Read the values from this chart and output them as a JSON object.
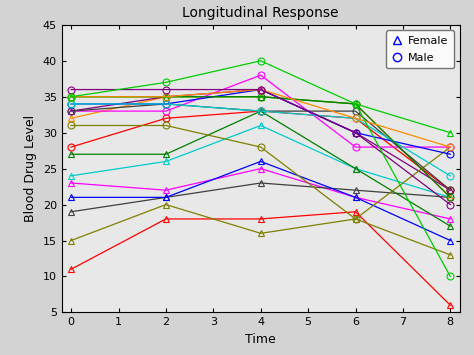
{
  "title": "Longitudinal Response",
  "xlabel": "Time",
  "ylabel": "Blood Drug Level",
  "xlim": [
    -0.2,
    8.2
  ],
  "ylim": [
    5,
    45
  ],
  "xticks": [
    0,
    1,
    2,
    3,
    4,
    5,
    6,
    7,
    8
  ],
  "yticks": [
    5,
    10,
    15,
    20,
    25,
    30,
    35,
    40,
    45
  ],
  "times": [
    0,
    2,
    4,
    6,
    8
  ],
  "bg_color": "#e8e8e8",
  "female_series": [
    {
      "color": "#FF0000",
      "data": [
        11,
        18,
        18,
        19,
        6
      ]
    },
    {
      "color": "#808000",
      "data": [
        15,
        20,
        16,
        18,
        13
      ]
    },
    {
      "color": "#FF00FF",
      "data": [
        23,
        22,
        25,
        21,
        18
      ]
    },
    {
      "color": "#404040",
      "data": [
        19,
        21,
        23,
        22,
        21
      ]
    },
    {
      "color": "#0000FF",
      "data": [
        21,
        21,
        26,
        21,
        15
      ]
    },
    {
      "color": "#00CCCC",
      "data": [
        24,
        26,
        31,
        25,
        21
      ]
    },
    {
      "color": "#008000",
      "data": [
        27,
        27,
        33,
        25,
        17
      ]
    },
    {
      "color": "#FF8C00",
      "data": [
        32,
        35,
        35,
        34,
        21
      ]
    },
    {
      "color": "#800080",
      "data": [
        33,
        35,
        36,
        30,
        22
      ]
    },
    {
      "color": "#00CC00",
      "data": [
        35,
        35,
        35,
        34,
        30
      ]
    }
  ],
  "male_series": [
    {
      "color": "#FF0000",
      "data": [
        28,
        32,
        33,
        32,
        22
      ]
    },
    {
      "color": "#808000",
      "data": [
        31,
        31,
        28,
        18,
        28
      ]
    },
    {
      "color": "#FF00FF",
      "data": [
        33,
        33,
        38,
        28,
        28
      ]
    },
    {
      "color": "#404040",
      "data": [
        33,
        34,
        33,
        33,
        22
      ]
    },
    {
      "color": "#0000FF",
      "data": [
        34,
        34,
        36,
        30,
        27
      ]
    },
    {
      "color": "#00CCCC",
      "data": [
        34,
        34,
        33,
        32,
        24
      ]
    },
    {
      "color": "#008000",
      "data": [
        35,
        35,
        35,
        34,
        21
      ]
    },
    {
      "color": "#FF8C00",
      "data": [
        35,
        35,
        36,
        32,
        28
      ]
    },
    {
      "color": "#800080",
      "data": [
        36,
        36,
        36,
        30,
        20
      ]
    },
    {
      "color": "#00CC00",
      "data": [
        35,
        37,
        40,
        34,
        10
      ]
    }
  ]
}
